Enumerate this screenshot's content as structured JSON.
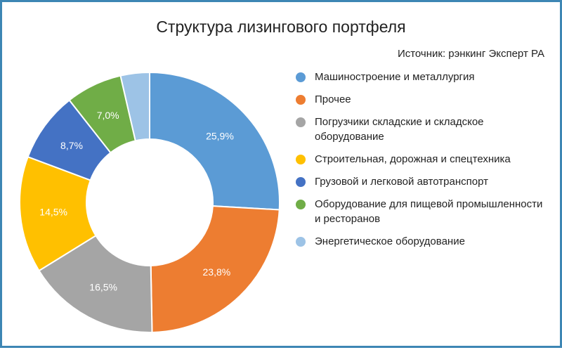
{
  "chart_data": {
    "type": "donut",
    "title": "Структура лизингового портфеля",
    "source": "Источник: рэнкинг Эксперт РА",
    "legend_position": "right",
    "series": [
      {
        "name": "Машиностроение и металлургия",
        "value": 25.9,
        "label": "25,9%",
        "color": "#5b9bd5"
      },
      {
        "name": "Прочее",
        "value": 23.8,
        "label": "23,8%",
        "color": "#ed7d31"
      },
      {
        "name": "Погрузчики складские и складское оборудование",
        "value": 16.5,
        "label": "16,5%",
        "color": "#a5a5a5"
      },
      {
        "name": "Строительная, дорожная и спецтехника",
        "value": 14.5,
        "label": "14,5%",
        "color": "#ffc000"
      },
      {
        "name": "Грузовой и легковой автотранспорт",
        "value": 8.7,
        "label": "8,7%",
        "color": "#4472c4"
      },
      {
        "name": "Оборудование для пищевой промышленности и ресторанов",
        "value": 7.0,
        "label": "7,0%",
        "color": "#70ad47"
      },
      {
        "name": "Энергетическое оборудование",
        "value": 3.6,
        "label": "",
        "color": "#9dc3e6"
      }
    ]
  }
}
